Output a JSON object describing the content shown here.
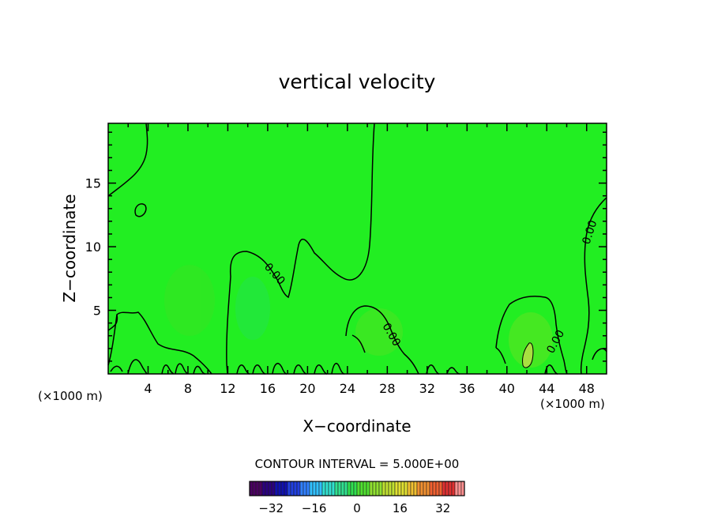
{
  "chart_data": {
    "type": "heatmap",
    "title": "vertical velocity",
    "xlabel": "X−coordinate",
    "ylabel": "Z−coordinate",
    "x_unit_left": "(×1000 m)",
    "x_unit_right": "(×1000 m)",
    "xlim": [
      0,
      50
    ],
    "ylim": [
      0,
      19.7
    ],
    "x_ticks": [
      4,
      8,
      12,
      16,
      20,
      24,
      28,
      32,
      36,
      40,
      44,
      48
    ],
    "y_ticks": [
      5,
      10,
      15
    ],
    "contour_interval_text": "CONTOUR INTERVAL = 5.000E+00",
    "contour_labels": [
      "0.00",
      "0.00",
      "0.00",
      "0.00"
    ],
    "field_color": "#22ee22",
    "colorbar": {
      "range": [
        -40,
        40
      ],
      "ticks": [
        -32,
        -16,
        0,
        16,
        32
      ],
      "colors": [
        "#4a0060",
        "#2a0080",
        "#1010b0",
        "#2040e0",
        "#3080ff",
        "#30c0ff",
        "#30e0d0",
        "#30e090",
        "#30e050",
        "#50e030",
        "#90e030",
        "#c0e030",
        "#e0e030",
        "#f0c030",
        "#f09030",
        "#f06030",
        "#e03030",
        "#ff9090"
      ]
    }
  }
}
